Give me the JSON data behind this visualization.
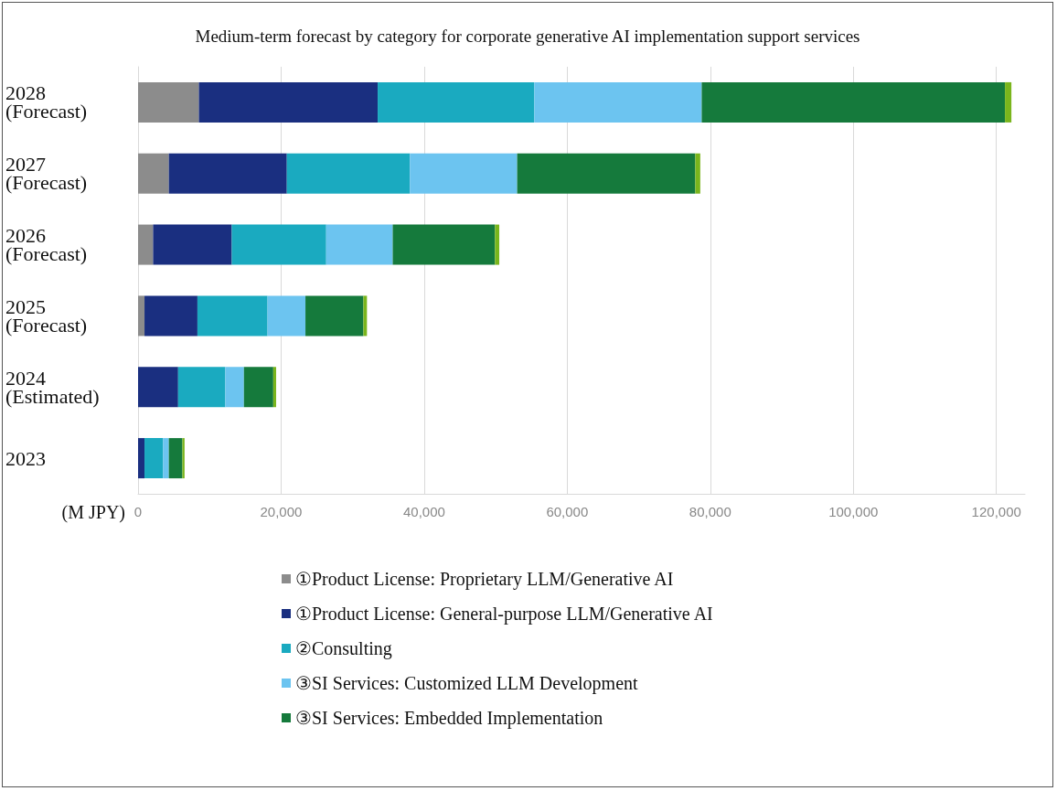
{
  "chart_data": {
    "type": "bar",
    "orientation": "horizontal",
    "stacked": true,
    "title": "Medium-term forecast by category for corporate generative AI implementation support services",
    "xlabel": "(M JPY)",
    "categories": [
      "2028\n(Forecast)",
      "2027\n(Forecast)",
      "2026\n(Forecast)",
      "2025\n(Forecast)",
      "2024\n(Estimated)",
      "2023"
    ],
    "series": [
      {
        "name": "①Product License: Proprietary LLM/Generative AI",
        "color": "#8c8c8c",
        "values": [
          8500,
          4300,
          2100,
          900,
          0,
          0
        ]
      },
      {
        "name": "①Product License: General-purpose LLM/Generative AI",
        "color": "#1a2f80",
        "values": [
          25000,
          16500,
          11000,
          7400,
          5600,
          900
        ]
      },
      {
        "name": "②Consulting",
        "color": "#1aaac0",
        "values": [
          21900,
          17200,
          13200,
          9800,
          6600,
          2600
        ]
      },
      {
        "name": "③SI Services: Customized LLM Development",
        "color": "#6cc4f0",
        "values": [
          23400,
          15000,
          9300,
          5300,
          2600,
          800
        ]
      },
      {
        "name": "③SI Services: Embedded Implementation",
        "color": "#157a3c",
        "values": [
          42400,
          24900,
          14300,
          8100,
          4100,
          1900
        ]
      },
      {
        "color": "#7ab51d",
        "values": [
          900,
          700,
          600,
          500,
          400,
          300
        ]
      }
    ],
    "xlim": [
      0,
      124000
    ],
    "xticks": [
      0,
      {
        "value": 20000,
        "label": "20,000"
      },
      {
        "value": 40000,
        "label": "40,000"
      },
      {
        "value": 60000,
        "label": "60,000"
      },
      {
        "value": 80000,
        "label": "80,000"
      },
      {
        "value": 100000,
        "label": "100,000"
      },
      {
        "value": 120000,
        "label": "120,000"
      }
    ],
    "grid": "x",
    "legend": "bottom"
  }
}
